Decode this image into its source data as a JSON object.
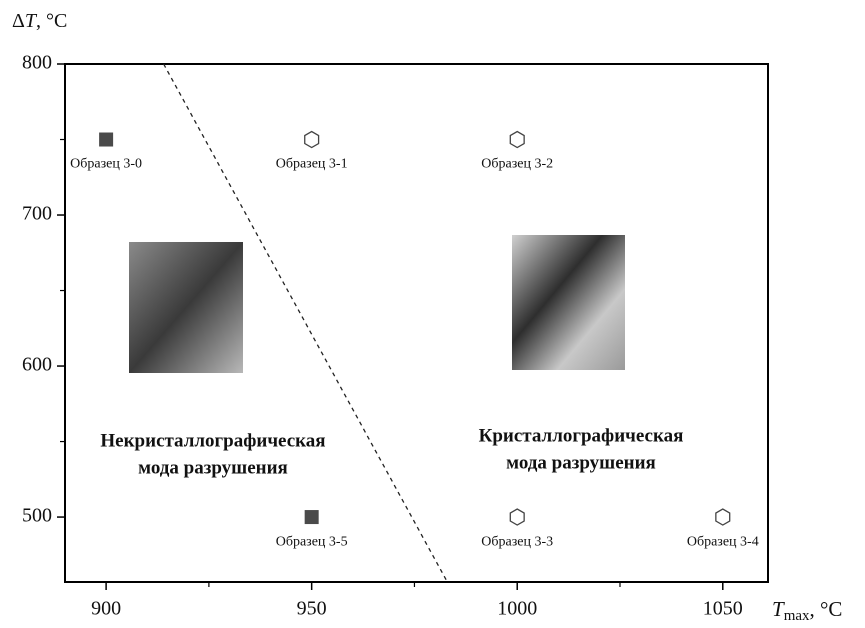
{
  "chart_data": {
    "type": "scatter",
    "y_label": {
      "symbol": "T",
      "prefix": "Δ",
      "unit": ", °C"
    },
    "x_label": {
      "symbol": "T",
      "subscript": "max",
      "unit": ", °C"
    },
    "xlim": [
      890,
      1061
    ],
    "ylim": [
      457,
      800
    ],
    "xticks": [
      900,
      950,
      1000,
      1050
    ],
    "yticks": [
      500,
      600,
      700,
      800
    ],
    "xminor": [
      925,
      975,
      1025
    ],
    "yminor": [
      550,
      650,
      750
    ],
    "points": [
      {
        "x": 900,
        "y": 750,
        "label": "Образец 3-0",
        "marker": "square",
        "color": "#4a4a4a"
      },
      {
        "x": 950,
        "y": 750,
        "label": "Образец 3-1",
        "marker": "hexagon",
        "color": "#444444"
      },
      {
        "x": 1000,
        "y": 750,
        "label": "Образец 3-2",
        "marker": "hexagon",
        "color": "#444444"
      },
      {
        "x": 1000,
        "y": 500,
        "label": "Образец 3-3",
        "marker": "hexagon",
        "color": "#444444"
      },
      {
        "x": 1050,
        "y": 500,
        "label": "Образец 3-4",
        "marker": "hexagon",
        "color": "#444444"
      },
      {
        "x": 950,
        "y": 500,
        "label": "Образец 3-5",
        "marker": "square",
        "color": "#4a4a4a"
      }
    ],
    "boundary": {
      "x": [
        914,
        983
      ],
      "y": [
        800,
        457
      ]
    },
    "annotations": [
      {
        "lines": [
          "Некристаллографическая",
          "мода разрушения"
        ]
      },
      {
        "lines": [
          "Кристаллографическая",
          "мода разрушения"
        ]
      }
    ]
  }
}
